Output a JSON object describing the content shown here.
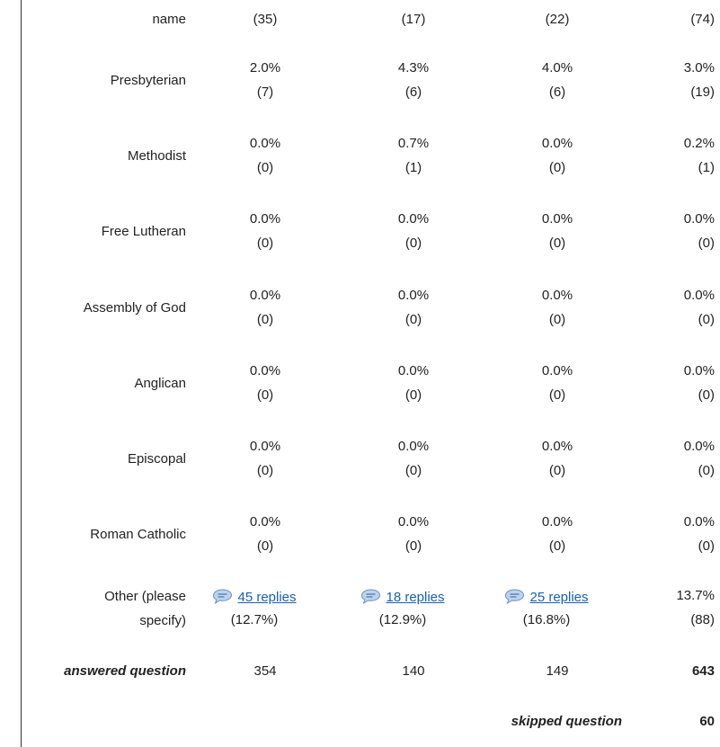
{
  "table": {
    "top_row": {
      "label": "name",
      "cells": [
        "(35)",
        "(17)",
        "(22)",
        "(74)"
      ]
    },
    "rows": [
      {
        "label": "Presbyterian",
        "cells": [
          [
            "2.0%",
            "(7)"
          ],
          [
            "4.3%",
            "(6)"
          ],
          [
            "4.0%",
            "(6)"
          ],
          [
            "3.0%",
            "(19)"
          ]
        ]
      },
      {
        "label": "Methodist",
        "cells": [
          [
            "0.0%",
            "(0)"
          ],
          [
            "0.7%",
            "(1)"
          ],
          [
            "0.0%",
            "(0)"
          ],
          [
            "0.2%",
            "(1)"
          ]
        ]
      },
      {
        "label": "Free Lutheran",
        "cells": [
          [
            "0.0%",
            "(0)"
          ],
          [
            "0.0%",
            "(0)"
          ],
          [
            "0.0%",
            "(0)"
          ],
          [
            "0.0%",
            "(0)"
          ]
        ]
      },
      {
        "label": "Assembly of God",
        "cells": [
          [
            "0.0%",
            "(0)"
          ],
          [
            "0.0%",
            "(0)"
          ],
          [
            "0.0%",
            "(0)"
          ],
          [
            "0.0%",
            "(0)"
          ]
        ]
      },
      {
        "label": "Anglican",
        "cells": [
          [
            "0.0%",
            "(0)"
          ],
          [
            "0.0%",
            "(0)"
          ],
          [
            "0.0%",
            "(0)"
          ],
          [
            "0.0%",
            "(0)"
          ]
        ]
      },
      {
        "label": "Episcopal",
        "cells": [
          [
            "0.0%",
            "(0)"
          ],
          [
            "0.0%",
            "(0)"
          ],
          [
            "0.0%",
            "(0)"
          ],
          [
            "0.0%",
            "(0)"
          ]
        ]
      },
      {
        "label": "Roman Catholic",
        "cells": [
          [
            "0.0%",
            "(0)"
          ],
          [
            "0.0%",
            "(0)"
          ],
          [
            "0.0%",
            "(0)"
          ],
          [
            "0.0%",
            "(0)"
          ]
        ]
      }
    ],
    "other": {
      "label": "Other (please specify)",
      "replies": [
        {
          "link": "45 replies",
          "pct": "(12.7%)"
        },
        {
          "link": "18 replies",
          "pct": "(12.9%)"
        },
        {
          "link": "25 replies",
          "pct": "(16.8%)"
        }
      ],
      "total": [
        "13.7%",
        "(88)"
      ]
    },
    "answered": {
      "label": "answered question",
      "values": [
        "354",
        "140",
        "149",
        "643"
      ]
    },
    "skipped": {
      "label": "skipped question",
      "value": "60"
    }
  }
}
